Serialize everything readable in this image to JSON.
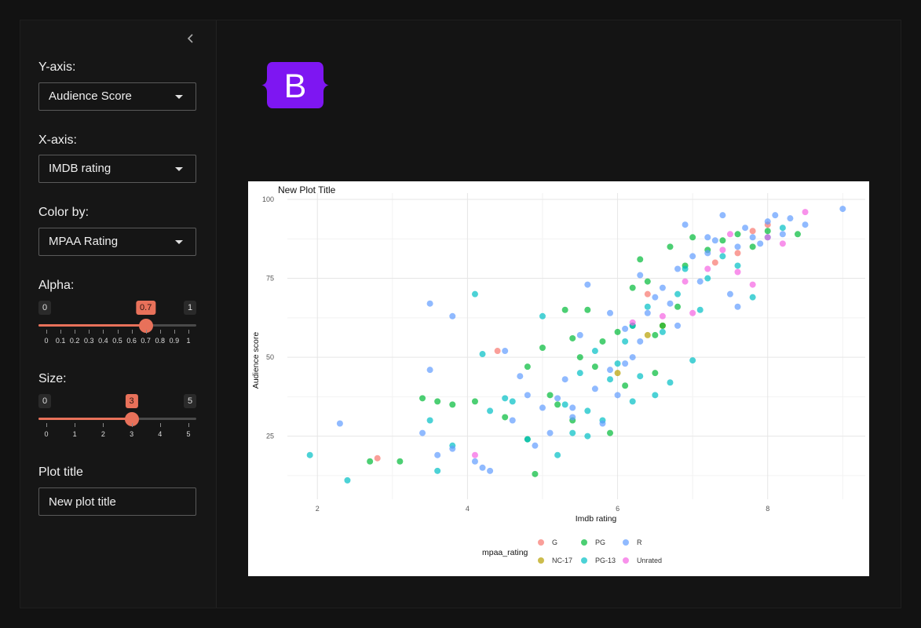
{
  "sidebar": {
    "collapse_icon": "chevron-left-icon",
    "yaxis": {
      "label": "Y-axis:",
      "value": "Audience Score"
    },
    "xaxis": {
      "label": "X-axis:",
      "value": "IMDB rating"
    },
    "color": {
      "label": "Color by:",
      "value": "MPAA Rating"
    },
    "alpha": {
      "label": "Alpha:",
      "min": "0",
      "max": "1",
      "value": "0.7",
      "ticks": [
        "0",
        "0.1",
        "0.2",
        "0.3",
        "0.4",
        "0.5",
        "0.6",
        "0.7",
        "0.8",
        "0.9",
        "1"
      ]
    },
    "size": {
      "label": "Size:",
      "min": "0",
      "max": "5",
      "value": "3",
      "ticks": [
        "0",
        "1",
        "2",
        "3",
        "4",
        "5"
      ]
    },
    "plot_title": {
      "label": "Plot title",
      "value": "New plot title"
    }
  },
  "brand": {
    "letter": "B",
    "color": "#7e16f2"
  },
  "accent_color": "#e8715a",
  "chart_data": {
    "type": "scatter",
    "title": "New Plot Title",
    "xlabel": "Imdb rating",
    "ylabel": "Audience score",
    "xlim": [
      1.6,
      9.3
    ],
    "ylim": [
      5,
      102
    ],
    "xticks": [
      2,
      4,
      6,
      8
    ],
    "yticks": [
      25,
      50,
      75,
      100
    ],
    "grid": true,
    "legend": {
      "title": "mpaa_rating",
      "position": "bottom",
      "entries": [
        "G",
        "NC-17",
        "PG",
        "PG-13",
        "R",
        "Unrated"
      ]
    },
    "series": [
      {
        "name": "G",
        "color": "#F8766D",
        "points": [
          [
            2.8,
            18
          ],
          [
            4.4,
            52
          ],
          [
            6.4,
            70
          ],
          [
            7.3,
            80
          ],
          [
            7.6,
            83
          ],
          [
            7.8,
            90
          ],
          [
            8.0,
            92
          ]
        ]
      },
      {
        "name": "NC-17",
        "color": "#B79F00",
        "points": [
          [
            6.4,
            57
          ],
          [
            6.6,
            60
          ],
          [
            6.0,
            45
          ]
        ]
      },
      {
        "name": "PG",
        "color": "#00BA38",
        "points": [
          [
            2.7,
            17
          ],
          [
            3.1,
            17
          ],
          [
            3.4,
            37
          ],
          [
            3.6,
            36
          ],
          [
            3.8,
            35
          ],
          [
            4.1,
            36
          ],
          [
            4.5,
            31
          ],
          [
            4.8,
            47
          ],
          [
            4.9,
            13
          ],
          [
            5.0,
            53
          ],
          [
            5.1,
            38
          ],
          [
            5.2,
            35
          ],
          [
            5.3,
            65
          ],
          [
            5.4,
            30
          ],
          [
            5.5,
            50
          ],
          [
            5.6,
            65
          ],
          [
            5.7,
            47
          ],
          [
            5.8,
            55
          ],
          [
            5.9,
            26
          ],
          [
            6.0,
            58
          ],
          [
            6.1,
            41
          ],
          [
            6.2,
            72
          ],
          [
            6.3,
            81
          ],
          [
            6.4,
            74
          ],
          [
            6.5,
            57
          ],
          [
            6.6,
            60
          ],
          [
            6.7,
            85
          ],
          [
            6.8,
            66
          ],
          [
            6.9,
            79
          ],
          [
            7.0,
            88
          ],
          [
            7.2,
            84
          ],
          [
            7.4,
            87
          ],
          [
            7.6,
            89
          ],
          [
            7.8,
            85
          ],
          [
            8.0,
            90
          ],
          [
            8.4,
            89
          ],
          [
            4.8,
            24
          ],
          [
            5.4,
            56
          ],
          [
            6.2,
            60
          ],
          [
            6.5,
            45
          ]
        ]
      },
      {
        "name": "PG-13",
        "color": "#00BFC4",
        "points": [
          [
            1.9,
            19
          ],
          [
            2.4,
            11
          ],
          [
            3.5,
            30
          ],
          [
            3.6,
            14
          ],
          [
            3.8,
            22
          ],
          [
            4.1,
            70
          ],
          [
            4.2,
            51
          ],
          [
            4.3,
            33
          ],
          [
            4.5,
            37
          ],
          [
            4.6,
            36
          ],
          [
            4.8,
            24
          ],
          [
            5.0,
            63
          ],
          [
            5.2,
            19
          ],
          [
            5.3,
            35
          ],
          [
            5.4,
            26
          ],
          [
            5.5,
            45
          ],
          [
            5.6,
            33
          ],
          [
            5.7,
            52
          ],
          [
            5.8,
            30
          ],
          [
            5.9,
            43
          ],
          [
            6.0,
            48
          ],
          [
            6.1,
            55
          ],
          [
            6.2,
            60
          ],
          [
            6.3,
            44
          ],
          [
            6.4,
            66
          ],
          [
            6.5,
            38
          ],
          [
            6.6,
            58
          ],
          [
            6.7,
            42
          ],
          [
            6.8,
            70
          ],
          [
            6.9,
            78
          ],
          [
            7.0,
            49
          ],
          [
            7.1,
            65
          ],
          [
            7.2,
            75
          ],
          [
            7.4,
            82
          ],
          [
            7.6,
            79
          ],
          [
            7.8,
            69
          ],
          [
            8.0,
            88
          ],
          [
            8.2,
            91
          ],
          [
            6.2,
            36
          ],
          [
            5.6,
            25
          ]
        ]
      },
      {
        "name": "R",
        "color": "#619CFF",
        "points": [
          [
            2.3,
            29
          ],
          [
            3.4,
            26
          ],
          [
            3.5,
            46
          ],
          [
            3.5,
            67
          ],
          [
            3.8,
            63
          ],
          [
            3.6,
            19
          ],
          [
            3.8,
            21
          ],
          [
            4.1,
            17
          ],
          [
            4.2,
            15
          ],
          [
            4.3,
            14
          ],
          [
            4.5,
            52
          ],
          [
            4.7,
            44
          ],
          [
            4.8,
            38
          ],
          [
            4.9,
            22
          ],
          [
            5.0,
            34
          ],
          [
            5.1,
            26
          ],
          [
            5.2,
            37
          ],
          [
            5.3,
            43
          ],
          [
            5.4,
            31
          ],
          [
            5.5,
            57
          ],
          [
            5.6,
            73
          ],
          [
            5.7,
            40
          ],
          [
            5.8,
            29
          ],
          [
            5.9,
            46
          ],
          [
            6.0,
            38
          ],
          [
            6.1,
            59
          ],
          [
            6.2,
            50
          ],
          [
            6.3,
            76
          ],
          [
            6.4,
            64
          ],
          [
            6.5,
            69
          ],
          [
            6.6,
            72
          ],
          [
            6.7,
            67
          ],
          [
            6.8,
            78
          ],
          [
            6.9,
            92
          ],
          [
            7.0,
            82
          ],
          [
            7.1,
            74
          ],
          [
            7.2,
            88
          ],
          [
            7.3,
            87
          ],
          [
            7.4,
            95
          ],
          [
            7.5,
            70
          ],
          [
            7.6,
            85
          ],
          [
            7.7,
            91
          ],
          [
            7.8,
            88
          ],
          [
            7.9,
            86
          ],
          [
            8.0,
            93
          ],
          [
            8.1,
            95
          ],
          [
            8.2,
            89
          ],
          [
            8.3,
            94
          ],
          [
            8.5,
            92
          ],
          [
            9.0,
            97
          ],
          [
            5.9,
            64
          ],
          [
            6.3,
            55
          ],
          [
            6.8,
            60
          ],
          [
            7.2,
            83
          ],
          [
            7.6,
            66
          ],
          [
            6.1,
            48
          ],
          [
            5.4,
            34
          ],
          [
            4.6,
            30
          ]
        ]
      },
      {
        "name": "Unrated",
        "color": "#F564E3",
        "points": [
          [
            4.1,
            19
          ],
          [
            6.2,
            61
          ],
          [
            6.6,
            63
          ],
          [
            7.0,
            64
          ],
          [
            7.2,
            78
          ],
          [
            7.4,
            84
          ],
          [
            7.5,
            89
          ],
          [
            7.6,
            77
          ],
          [
            7.8,
            73
          ],
          [
            8.0,
            88
          ],
          [
            8.2,
            86
          ],
          [
            8.5,
            96
          ],
          [
            6.9,
            74
          ]
        ]
      }
    ]
  }
}
